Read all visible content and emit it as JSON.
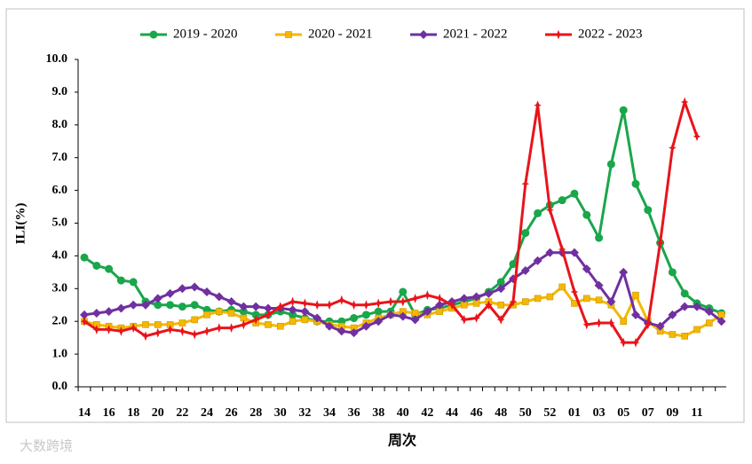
{
  "chart_data": {
    "type": "line",
    "x_label": "周次",
    "y_label": "ILI(%)",
    "categories": [
      "14",
      null,
      "16",
      null,
      "18",
      null,
      "20",
      null,
      "22",
      null,
      "24",
      null,
      "26",
      null,
      "28",
      null,
      "30",
      null,
      "32",
      null,
      "34",
      null,
      "36",
      null,
      "38",
      null,
      "40",
      null,
      "42",
      null,
      "44",
      null,
      "46",
      null,
      "48",
      null,
      "50",
      null,
      "52",
      null,
      "01",
      null,
      "03",
      null,
      "05",
      null,
      "07",
      null,
      "09",
      null,
      "11",
      null,
      null
    ],
    "ylim": [
      0,
      10
    ],
    "yticks": [
      {
        "value": 0,
        "label": "0.0"
      },
      {
        "value": 1,
        "label": "1.0"
      },
      {
        "value": 2,
        "label": "2.0"
      },
      {
        "value": 3,
        "label": "3.0"
      },
      {
        "value": 4,
        "label": "4.0"
      },
      {
        "value": 5,
        "label": "5.0"
      },
      {
        "value": 6,
        "label": "6.0"
      },
      {
        "value": 7,
        "label": "7.0"
      },
      {
        "value": 8,
        "label": "8.0"
      },
      {
        "value": 9,
        "label": "9.0"
      },
      {
        "value": 10,
        "label": "10.0"
      }
    ],
    "legend": "top",
    "series": [
      {
        "name": "2019 - 2020",
        "color": "#1aa64a",
        "marker": "circle",
        "values": [
          3.95,
          3.7,
          3.6,
          3.25,
          3.2,
          2.6,
          2.5,
          2.5,
          2.45,
          2.5,
          2.35,
          2.3,
          2.35,
          2.3,
          2.2,
          2.2,
          2.3,
          2.2,
          2.1,
          2.0,
          2.0,
          2.0,
          2.1,
          2.2,
          2.3,
          2.3,
          2.9,
          2.2,
          2.35,
          2.4,
          2.5,
          2.6,
          2.7,
          2.9,
          3.2,
          3.75,
          4.7,
          5.3,
          5.55,
          5.7,
          5.9,
          5.25,
          4.55,
          6.8,
          8.45,
          6.2,
          5.4,
          4.4,
          3.5,
          2.85,
          2.55,
          2.4,
          2.25
        ]
      },
      {
        "name": "2020 - 2021",
        "color": "#f5b800",
        "marker": "square",
        "values": [
          2.0,
          1.9,
          1.85,
          1.8,
          1.85,
          1.9,
          1.9,
          1.9,
          1.95,
          2.05,
          2.2,
          2.3,
          2.25,
          2.1,
          1.95,
          1.9,
          1.85,
          2.0,
          2.05,
          2.0,
          1.9,
          1.85,
          1.8,
          1.95,
          2.1,
          2.2,
          2.3,
          2.25,
          2.2,
          2.3,
          2.4,
          2.5,
          2.55,
          2.6,
          2.5,
          2.5,
          2.6,
          2.7,
          2.75,
          3.05,
          2.55,
          2.7,
          2.65,
          2.5,
          2.0,
          2.8,
          2.0,
          1.7,
          1.6,
          1.55,
          1.75,
          1.95,
          2.2
        ]
      },
      {
        "name": "2021 - 2022",
        "color": "#7030a0",
        "marker": "diamond",
        "values": [
          2.2,
          2.25,
          2.3,
          2.4,
          2.5,
          2.5,
          2.7,
          2.85,
          3.0,
          3.05,
          2.9,
          2.75,
          2.6,
          2.45,
          2.45,
          2.4,
          2.4,
          2.35,
          2.3,
          2.1,
          1.85,
          1.7,
          1.65,
          1.85,
          2.0,
          2.2,
          2.15,
          2.05,
          2.3,
          2.5,
          2.6,
          2.7,
          2.75,
          2.85,
          3.0,
          3.3,
          3.55,
          3.85,
          4.1,
          4.1,
          4.1,
          3.6,
          3.1,
          2.6,
          3.5,
          2.2,
          1.95,
          1.85,
          2.2,
          2.45,
          2.45,
          2.3,
          2.0
        ]
      },
      {
        "name": "2022 - 2023",
        "color": "#e8141b",
        "marker": "star",
        "values": [
          2.0,
          1.75,
          1.75,
          1.7,
          1.8,
          1.55,
          1.65,
          1.75,
          1.7,
          1.6,
          1.7,
          1.8,
          1.8,
          1.9,
          2.05,
          2.2,
          2.45,
          2.6,
          2.55,
          2.5,
          2.5,
          2.65,
          2.5,
          2.5,
          2.55,
          2.6,
          2.6,
          2.7,
          2.8,
          2.7,
          2.5,
          2.05,
          2.1,
          2.5,
          2.05,
          2.6,
          6.2,
          8.6,
          5.4,
          4.2,
          2.9,
          1.9,
          1.95,
          1.95,
          1.35,
          1.35,
          1.9,
          4.4,
          7.3,
          8.7,
          7.65,
          null,
          null
        ]
      }
    ]
  },
  "watermark": "大数跨境"
}
